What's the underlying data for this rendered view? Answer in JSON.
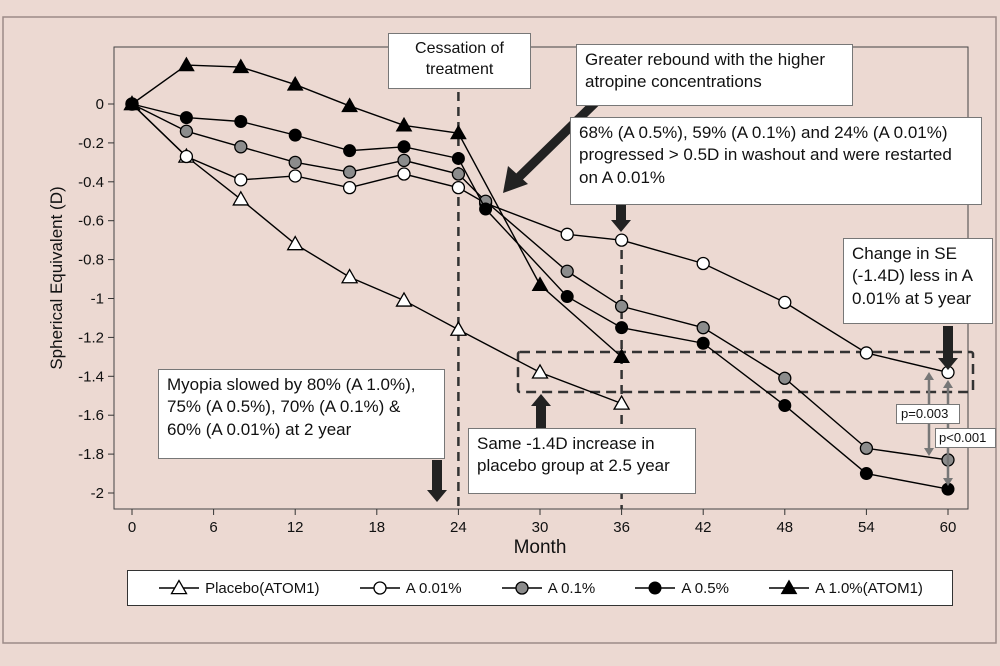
{
  "chart_data": {
    "type": "line",
    "xlabel": "Month",
    "ylabel": "Spherical Equivalent (D)",
    "xlim": [
      -1,
      61
    ],
    "ylim": [
      -2.05,
      0.25
    ],
    "x_ticks": [
      0,
      6,
      12,
      18,
      24,
      30,
      36,
      42,
      48,
      54,
      60
    ],
    "y_ticks": [
      0,
      -0.2,
      -0.4,
      -0.6,
      -0.8,
      -1,
      -1.2,
      -1.4,
      -1.6,
      -1.8,
      -2
    ],
    "y_tick_labels": [
      "0",
      "-0.2",
      "-0.4",
      "-0.6",
      "-0.8",
      "-1",
      "-1.2",
      "-1.4",
      "-1.6",
      "-1.8",
      "-2"
    ],
    "grid": false,
    "legend_placement": "bottom",
    "background_color": "#ecd9d2",
    "series": [
      {
        "name": "Placebo(ATOM1)",
        "marker": "open-triangle",
        "color": "#000000",
        "x": [
          0,
          4,
          8,
          12,
          16,
          20,
          24,
          30,
          36
        ],
        "y": [
          0,
          -0.27,
          -0.49,
          -0.72,
          -0.89,
          -1.01,
          -1.16,
          -1.38,
          -1.54
        ]
      },
      {
        "name": "A 0.01%",
        "marker": "open-circle",
        "color": "#000000",
        "x": [
          0,
          4,
          8,
          12,
          16,
          20,
          24,
          26,
          32,
          36,
          42,
          48,
          54,
          60
        ],
        "y": [
          0,
          -0.27,
          -0.39,
          -0.37,
          -0.43,
          -0.36,
          -0.43,
          -0.51,
          -0.67,
          -0.7,
          -0.82,
          -1.02,
          -1.28,
          -1.38
        ]
      },
      {
        "name": "A 0.1%",
        "marker": "gray-circle",
        "color": "#000000",
        "x": [
          0,
          4,
          8,
          12,
          16,
          20,
          24,
          26,
          32,
          36,
          42,
          48,
          54,
          60
        ],
        "y": [
          0,
          -0.14,
          -0.22,
          -0.3,
          -0.35,
          -0.29,
          -0.36,
          -0.5,
          -0.86,
          -1.04,
          -1.15,
          -1.41,
          -1.77,
          -1.83
        ]
      },
      {
        "name": "A 0.5%",
        "marker": "filled-circle",
        "color": "#000000",
        "x": [
          0,
          4,
          8,
          12,
          16,
          20,
          24,
          26,
          32,
          36,
          42,
          48,
          54,
          60
        ],
        "y": [
          0,
          -0.07,
          -0.09,
          -0.16,
          -0.24,
          -0.22,
          -0.28,
          -0.54,
          -0.99,
          -1.15,
          -1.23,
          -1.55,
          -1.9,
          -1.98
        ]
      },
      {
        "name": "A 1.0%(ATOM1)",
        "marker": "filled-triangle",
        "color": "#000000",
        "x": [
          0,
          4,
          8,
          12,
          16,
          20,
          24,
          30,
          36
        ],
        "y": [
          0,
          0.2,
          0.19,
          0.1,
          -0.01,
          -0.11,
          -0.15,
          -0.93,
          -1.3
        ]
      }
    ],
    "annotations": {
      "cessation": "Cessation of\ntreatment",
      "rebound": "Greater rebound with the higher\natropine concentrations",
      "progressed": "68% (A 0.5%), 59% (A 0.1%) and 24% (A 0.01%)\nprogressed > 0.5D in washout and were restarted\non A 0.01%",
      "change_se": "Change in SE\n(-1.4D) less in A\n0.01% at 5 year",
      "myopia": "Myopia slowed by 80% (A 1.0%),\n75% (A 0.5%), 70% (A 0.1%) &\n60% (A 0.01%) at 2 year",
      "same_increase": "Same -1.4D increase in\nplacebo group at 2.5 year",
      "p1": "p=0.003",
      "p2": "p<0.001"
    }
  }
}
